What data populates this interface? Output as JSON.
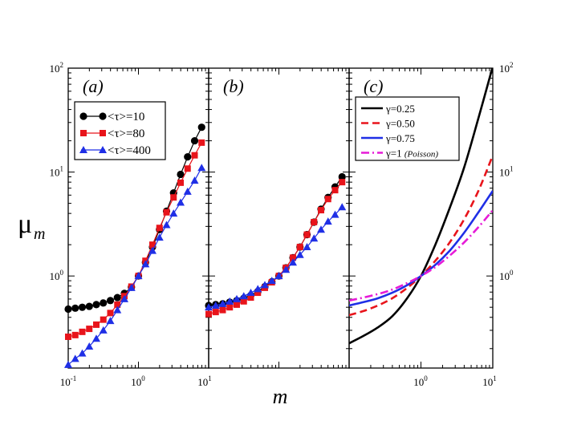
{
  "chart_data": {
    "type": "line",
    "ylabel": "μ",
    "ylabel_sub": "m",
    "xlabel": "m",
    "xscale": "log",
    "yscale": "log",
    "xlim": [
      0.1,
      10
    ],
    "ylim": [
      0.13,
      100
    ],
    "x_tick_labels": [
      {
        "value": 0.1,
        "base": "10",
        "exp": "-1"
      },
      {
        "value": 1,
        "base": "10",
        "exp": "0"
      },
      {
        "value": 10,
        "base": "10",
        "exp": "1"
      }
    ],
    "y_tick_labels": [
      {
        "value": 1,
        "base": "10",
        "exp": "0"
      },
      {
        "value": 10,
        "base": "10",
        "exp": "1"
      },
      {
        "value": 100,
        "base": "10",
        "exp": "2"
      }
    ],
    "panels": [
      {
        "label": "(a)",
        "legend_position": "upper-left",
        "series": [
          {
            "name": "<τ>=10",
            "color": "#000000",
            "marker": "circle",
            "x": [
              0.1,
              0.1259,
              0.1585,
              0.1995,
              0.2512,
              0.3162,
              0.3981,
              0.5012,
              0.631,
              0.7943,
              1.0,
              1.259,
              1.585,
              1.995,
              2.512,
              3.162,
              3.981,
              5.012,
              6.31,
              7.943
            ],
            "y": [
              0.48,
              0.49,
              0.5,
              0.51,
              0.53,
              0.55,
              0.58,
              0.62,
              0.68,
              0.78,
              1.0,
              1.35,
              1.9,
              2.8,
              4.2,
              6.3,
              9.5,
              14,
              20,
              27
            ]
          },
          {
            "name": "<τ>=80",
            "color": "#e8141b",
            "marker": "square",
            "x": [
              0.1,
              0.1259,
              0.1585,
              0.1995,
              0.2512,
              0.3162,
              0.3981,
              0.5012,
              0.631,
              0.7943,
              1.0,
              1.259,
              1.585,
              1.995,
              2.512,
              3.162,
              3.981,
              5.012,
              6.31,
              7.943
            ],
            "y": [
              0.26,
              0.27,
              0.29,
              0.31,
              0.34,
              0.38,
              0.44,
              0.53,
              0.64,
              0.79,
              1.0,
              1.4,
              2.0,
              2.9,
              4.1,
              5.7,
              7.9,
              10.8,
              14.5,
              19.2
            ]
          },
          {
            "name": "<τ>=400",
            "color": "#1f2fe6",
            "marker": "triangle",
            "x": [
              0.1,
              0.1259,
              0.1585,
              0.1995,
              0.2512,
              0.3162,
              0.3981,
              0.5012,
              0.631,
              0.7943,
              1.0,
              1.259,
              1.585,
              1.995,
              2.512,
              3.162,
              3.981,
              5.012,
              6.31,
              7.943
            ],
            "y": [
              0.14,
              0.16,
              0.18,
              0.21,
              0.25,
              0.3,
              0.37,
              0.47,
              0.6,
              0.77,
              1.0,
              1.3,
              1.75,
              2.35,
              3.1,
              4.0,
              5.1,
              6.5,
              8.3,
              11.0
            ]
          }
        ]
      },
      {
        "label": "(b)",
        "series": [
          {
            "name": "<τ>=10",
            "color": "#000000",
            "marker": "circle",
            "x": [
              0.1,
              0.1259,
              0.1585,
              0.1995,
              0.2512,
              0.3162,
              0.3981,
              0.5012,
              0.631,
              0.7943,
              1.0,
              1.259,
              1.585,
              1.995,
              2.512,
              3.162,
              3.981,
              5.012,
              6.31,
              7.943
            ],
            "y": [
              0.52,
              0.53,
              0.54,
              0.56,
              0.58,
              0.61,
              0.65,
              0.71,
              0.79,
              0.88,
              1.0,
              1.2,
              1.5,
              1.9,
              2.5,
              3.3,
              4.4,
              5.7,
              7.2,
              9.0
            ]
          },
          {
            "name": "<τ>=80",
            "color": "#e8141b",
            "marker": "square",
            "x": [
              0.1,
              0.1259,
              0.1585,
              0.1995,
              0.2512,
              0.3162,
              0.3981,
              0.5012,
              0.631,
              0.7943,
              1.0,
              1.259,
              1.585,
              1.995,
              2.512,
              3.162,
              3.981,
              5.012,
              6.31,
              7.943
            ],
            "y": [
              0.43,
              0.45,
              0.47,
              0.5,
              0.53,
              0.57,
              0.62,
              0.69,
              0.77,
              0.87,
              1.0,
              1.2,
              1.5,
              1.9,
              2.5,
              3.3,
              4.3,
              5.5,
              6.7,
              8.0
            ]
          },
          {
            "name": "<τ>=400",
            "color": "#1f2fe6",
            "marker": "triangle",
            "x": [
              0.1,
              0.1259,
              0.1585,
              0.1995,
              0.2512,
              0.3162,
              0.3981,
              0.5012,
              0.631,
              0.7943,
              1.0,
              1.259,
              1.585,
              1.995,
              2.512,
              3.162,
              3.981,
              5.012,
              6.31,
              7.943
            ],
            "y": [
              0.5,
              0.52,
              0.54,
              0.57,
              0.6,
              0.64,
              0.69,
              0.75,
              0.82,
              0.9,
              1.0,
              1.15,
              1.35,
              1.6,
              1.9,
              2.3,
              2.8,
              3.35,
              3.9,
              4.6
            ]
          }
        ]
      },
      {
        "label": "(c)",
        "legend_position": "upper-left",
        "series": [
          {
            "name": "γ=0.25",
            "color": "#000000",
            "dash": "solid",
            "gamma": 0.25,
            "x": [
              0.1,
              0.1585,
              0.2512,
              0.3981,
              0.631,
              1.0,
              1.585,
              2.512,
              3.981,
              6.31,
              10
            ],
            "y": [
              0.225,
              0.265,
              0.32,
              0.41,
              0.6,
              1.0,
              2.0,
              4.5,
              11,
              33,
              104
            ]
          },
          {
            "name": "γ=0.50",
            "color": "#e8141b",
            "dash": "dash",
            "gamma": 0.5,
            "x": [
              0.1,
              0.1585,
              0.2512,
              0.3981,
              0.631,
              1.0,
              1.585,
              2.512,
              3.981,
              6.31,
              10
            ],
            "y": [
              0.42,
              0.46,
              0.52,
              0.61,
              0.76,
              1.0,
              1.4,
              2.1,
              3.5,
              6.6,
              14.5
            ]
          },
          {
            "name": "γ=0.75",
            "color": "#1f2fe6",
            "dash": "solid",
            "gamma": 0.75,
            "x": [
              0.1,
              0.1585,
              0.2512,
              0.3981,
              0.631,
              1.0,
              1.585,
              2.512,
              3.981,
              6.31,
              10
            ],
            "y": [
              0.52,
              0.56,
              0.61,
              0.69,
              0.81,
              1.0,
              1.28,
              1.75,
              2.6,
              4.1,
              6.6
            ]
          },
          {
            "name": "γ=1 (Poisson)",
            "label_main": "γ=1",
            "label_italic": "(Poisson)",
            "color": "#e61bd7",
            "dash": "dashdot",
            "gamma": 1,
            "x": [
              0.1,
              0.1585,
              0.2512,
              0.3981,
              0.631,
              1.0,
              1.585,
              2.512,
              3.981,
              6.31,
              10
            ],
            "y": [
              0.58,
              0.62,
              0.67,
              0.74,
              0.85,
              1.0,
              1.22,
              1.57,
              2.1,
              2.95,
              4.3
            ]
          }
        ]
      }
    ]
  }
}
